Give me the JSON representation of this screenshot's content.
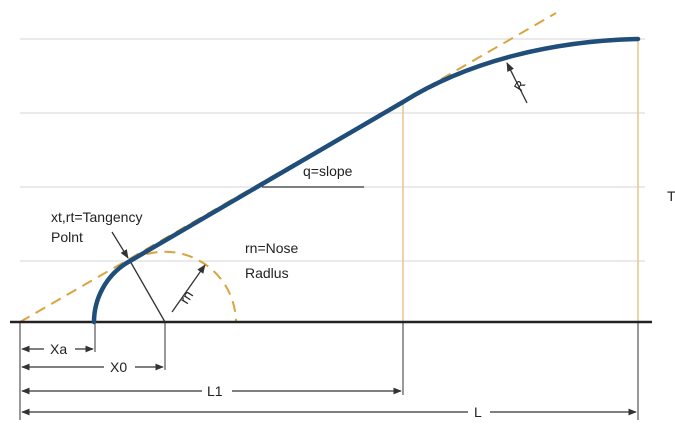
{
  "colors": {
    "curve": "#1f4e7a",
    "tangent": "#d9a441",
    "guide": "#e6c88a",
    "grid": "#d4d4d4",
    "baseline": "#222222",
    "dim": "#333333",
    "text": "#222222"
  },
  "labels": {
    "tangency_point_line1": "xt,rt=Tangency",
    "tangency_point_line2": "Polnt",
    "nose_radius_line1": "rn=Nose",
    "nose_radius_line2": "Radlus",
    "rn": "rn",
    "slope": "q=slope",
    "radius": "R",
    "edge_t": "T"
  },
  "dimensions": {
    "xa": "Xa",
    "x0": "X0",
    "l1": "L1",
    "l": "L"
  }
}
